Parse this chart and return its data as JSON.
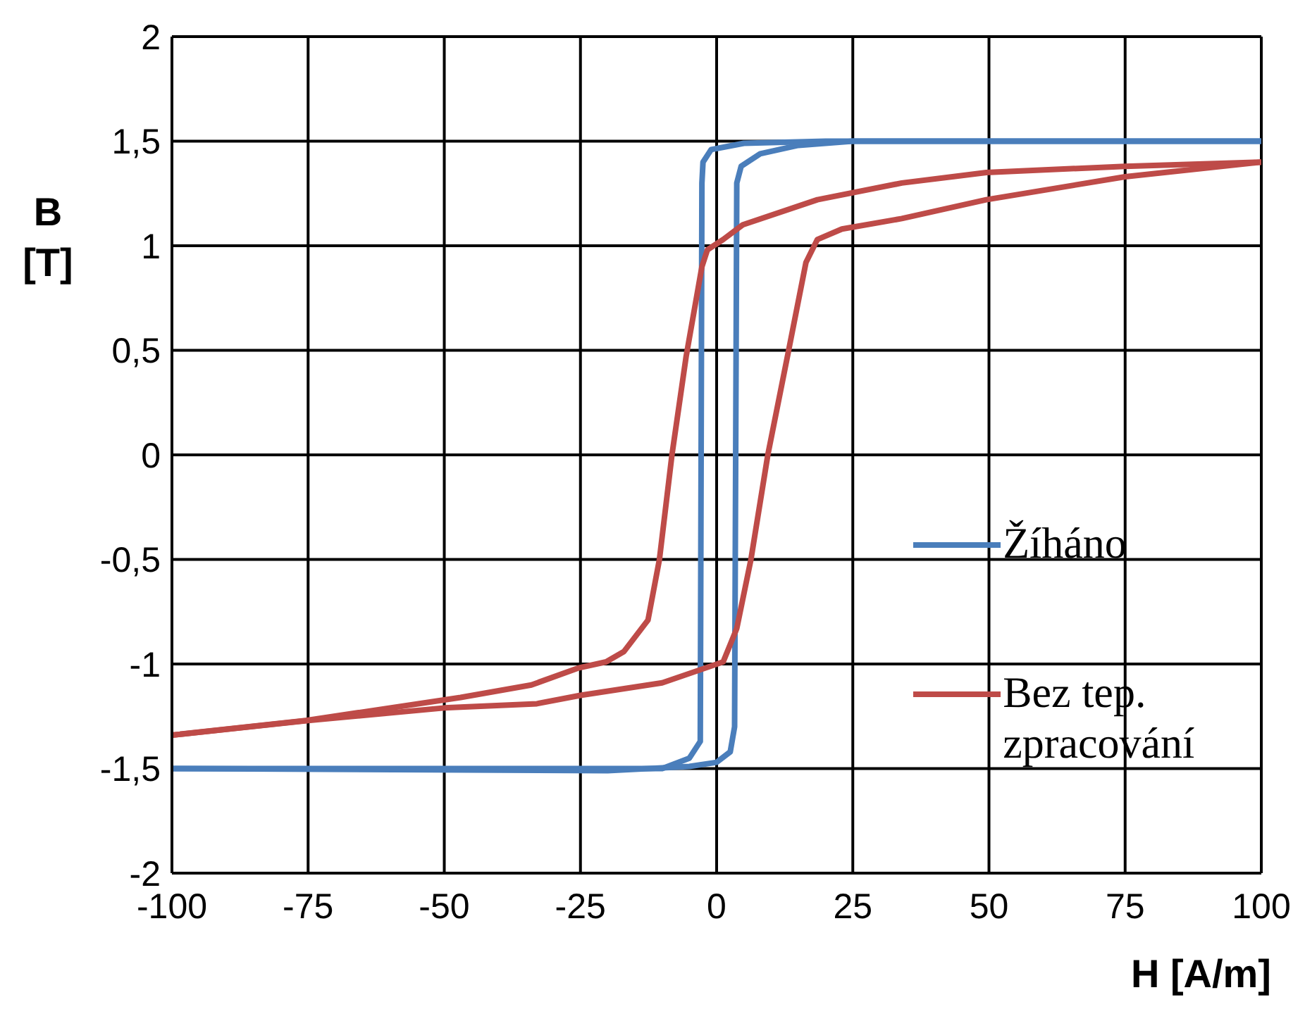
{
  "chart_data": {
    "type": "line",
    "xlabel": "H [A/m]",
    "ylabel": "B [T]",
    "xlim": [
      -100,
      100
    ],
    "xticks": [
      -100,
      -75,
      -50,
      -25,
      0,
      25,
      50,
      75,
      100
    ],
    "ylim": [
      -2,
      2
    ],
    "yticks": [
      {
        "value": -2,
        "label": "-2"
      },
      {
        "value": -1.5,
        "label": "-1,5"
      },
      {
        "value": -1,
        "label": "-1"
      },
      {
        "value": -0.5,
        "label": "-0,5"
      },
      {
        "value": 0,
        "label": "0"
      },
      {
        "value": 0.5,
        "label": "0,5"
      },
      {
        "value": 1,
        "label": "1"
      },
      {
        "value": 1.5,
        "label": "1,5"
      },
      {
        "value": 2,
        "label": "2"
      }
    ],
    "grid": true,
    "legend": "right",
    "marker": "none",
    "line_style": "solid",
    "series": [
      {
        "name": "Žíháno",
        "color": "#4a7ebb",
        "x": [
          100,
          20,
          5,
          -1,
          -2.5,
          -2.7,
          -3,
          -5,
          -10,
          -100
        ],
        "values": [
          1.5,
          1.5,
          1.49,
          1.46,
          1.4,
          1.3,
          -1.37,
          -1.45,
          -1.5,
          -1.5
        ]
      },
      {
        "color": "#4a7ebb",
        "x": [
          -100,
          -20,
          -5,
          0,
          2.5,
          3.3,
          3.7,
          4.5,
          8,
          15,
          25,
          100
        ],
        "values": [
          -1.5,
          -1.51,
          -1.49,
          -1.47,
          -1.42,
          -1.3,
          1.3,
          1.38,
          1.44,
          1.48,
          1.5,
          1.5
        ]
      },
      {
        "name": "Bez tep. zpracování",
        "color": "#be4b48",
        "x": [
          100,
          75,
          49.5,
          34,
          18.5,
          4.8,
          1.2,
          -1.7,
          -2.7,
          -5.6,
          -8.2,
          -10.5,
          -12.6,
          -17,
          -20.3,
          -25.5,
          -34,
          -47,
          -75.4,
          -100
        ],
        "values": [
          1.4,
          1.38,
          1.35,
          1.3,
          1.22,
          1.1,
          1.03,
          0.98,
          0.9,
          0.47,
          0,
          -0.5,
          -0.79,
          -0.94,
          -0.99,
          -1.02,
          -1.1,
          -1.16,
          -1.27,
          -1.34
        ]
      },
      {
        "color": "#be4b48",
        "x": [
          -100,
          -75,
          -50,
          -33,
          -25,
          -10,
          1.2,
          3.7,
          6.3,
          9.4,
          13.3,
          16.4,
          18.5,
          23,
          34,
          49.5,
          75,
          100
        ],
        "values": [
          -1.34,
          -1.27,
          -1.21,
          -1.19,
          -1.15,
          -1.09,
          -0.99,
          -0.83,
          -0.5,
          0,
          0.51,
          0.92,
          1.03,
          1.08,
          1.13,
          1.22,
          1.33,
          1.4
        ]
      }
    ]
  }
}
